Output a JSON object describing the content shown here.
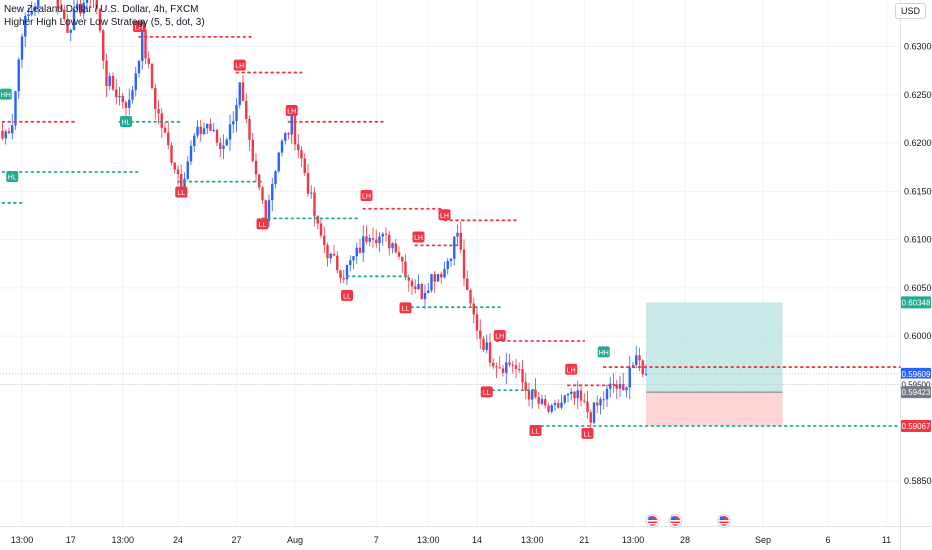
{
  "header": {
    "title": "New Zealand Dollar / U.S. Dollar, 4h, FXCM",
    "indicator": "Higher High Lower Low Strategy (5, 5, dot, 3)"
  },
  "currency_button": "USD",
  "colors": {
    "up": "#2962ff",
    "down": "#f23645",
    "bull_marker": "#22ab94",
    "grid": "#f0f3fa",
    "tp": "#b2dfdb",
    "sl": "#fccbcd"
  },
  "chart_data": {
    "type": "candlestick",
    "symbol": "NZDUSD",
    "timeframe": "4h",
    "ylim": [
      0.581,
      0.637
    ],
    "y_ticks": [
      "0.63000",
      "0.62500",
      "0.62000",
      "0.61500",
      "0.61000",
      "0.60500",
      "0.60000",
      "0.59500",
      "0.58500"
    ],
    "x_ticks": [
      {
        "label": "13:00",
        "i": 6
      },
      {
        "label": "17",
        "i": 21
      },
      {
        "label": "13:00",
        "i": 37
      },
      {
        "label": "24",
        "i": 54
      },
      {
        "label": "27",
        "i": 72
      },
      {
        "label": "Aug",
        "i": 90
      },
      {
        "label": "7",
        "i": 115
      },
      {
        "label": "13:00",
        "i": 131
      },
      {
        "label": "14",
        "i": 146
      },
      {
        "label": "13:00",
        "i": 163
      },
      {
        "label": "21",
        "i": 179
      },
      {
        "label": "13:00",
        "i": 194
      },
      {
        "label": "28",
        "i": 210
      },
      {
        "label": "Sep",
        "i": 234
      },
      {
        "label": "6",
        "i": 254
      },
      {
        "label": "11",
        "i": 272
      }
    ],
    "anchors": [
      [
        0,
        0.6205
      ],
      [
        3,
        0.6223
      ],
      [
        6,
        0.6318
      ],
      [
        10,
        0.6345
      ],
      [
        14,
        0.6372
      ],
      [
        20,
        0.632
      ],
      [
        28,
        0.6362
      ],
      [
        32,
        0.6265
      ],
      [
        36,
        0.6248
      ],
      [
        39,
        0.624
      ],
      [
        43,
        0.631
      ],
      [
        47,
        0.624
      ],
      [
        51,
        0.6195
      ],
      [
        55,
        0.616
      ],
      [
        59,
        0.6205
      ],
      [
        63,
        0.622
      ],
      [
        67,
        0.6195
      ],
      [
        70,
        0.6215
      ],
      [
        73,
        0.6258
      ],
      [
        77,
        0.6175
      ],
      [
        81,
        0.6128
      ],
      [
        85,
        0.6192
      ],
      [
        89,
        0.622
      ],
      [
        93,
        0.617
      ],
      [
        97,
        0.611
      ],
      [
        101,
        0.608
      ],
      [
        105,
        0.6065
      ],
      [
        109,
        0.6085
      ],
      [
        113,
        0.611
      ],
      [
        117,
        0.61
      ],
      [
        121,
        0.6095
      ],
      [
        125,
        0.606
      ],
      [
        129,
        0.6045
      ],
      [
        132,
        0.6062
      ],
      [
        136,
        0.607
      ],
      [
        140,
        0.6108
      ],
      [
        143,
        0.604
      ],
      [
        147,
        0.6
      ],
      [
        150,
        0.598
      ],
      [
        153,
        0.597
      ],
      [
        157,
        0.5972
      ],
      [
        161,
        0.5945
      ],
      [
        165,
        0.593
      ],
      [
        169,
        0.592
      ],
      [
        173,
        0.5935
      ],
      [
        177,
        0.5935
      ],
      [
        181,
        0.5918
      ],
      [
        184,
        0.5932
      ],
      [
        188,
        0.595
      ],
      [
        191,
        0.594
      ],
      [
        193,
        0.597
      ],
      [
        196,
        0.5972
      ],
      [
        198,
        0.5961
      ]
    ],
    "swing_labels": [
      {
        "text": "HH",
        "i": 1,
        "price": 0.6245,
        "kind": "bull",
        "pos": "above"
      },
      {
        "text": "HL",
        "i": 38,
        "price": 0.6228,
        "kind": "bull",
        "pos": "below"
      },
      {
        "text": "HL",
        "i": 3,
        "price": 0.6171,
        "kind": "bull",
        "pos": "below"
      },
      {
        "text": "LH",
        "i": 42,
        "price": 0.6315,
        "kind": "bear",
        "pos": "above"
      },
      {
        "text": "LH",
        "i": 73,
        "price": 0.6275,
        "kind": "bear",
        "pos": "above"
      },
      {
        "text": "LH",
        "i": 89,
        "price": 0.6228,
        "kind": "bear",
        "pos": "above"
      },
      {
        "text": "LL",
        "i": 55,
        "price": 0.6155,
        "kind": "bear",
        "pos": "below"
      },
      {
        "text": "LL",
        "i": 80,
        "price": 0.6122,
        "kind": "bear",
        "pos": "below"
      },
      {
        "text": "LH",
        "i": 112,
        "price": 0.614,
        "kind": "bear",
        "pos": "above"
      },
      {
        "text": "LH",
        "i": 128,
        "price": 0.6097,
        "kind": "bear",
        "pos": "above"
      },
      {
        "text": "LH",
        "i": 136,
        "price": 0.612,
        "kind": "bear",
        "pos": "above"
      },
      {
        "text": "LL",
        "i": 106,
        "price": 0.6048,
        "kind": "bear",
        "pos": "below"
      },
      {
        "text": "LL",
        "i": 124,
        "price": 0.6035,
        "kind": "bear",
        "pos": "below"
      },
      {
        "text": "LH",
        "i": 153,
        "price": 0.5995,
        "kind": "bear",
        "pos": "above"
      },
      {
        "text": "LL",
        "i": 149,
        "price": 0.5948,
        "kind": "bear",
        "pos": "below"
      },
      {
        "text": "LH",
        "i": 175,
        "price": 0.596,
        "kind": "bear",
        "pos": "above"
      },
      {
        "text": "LL",
        "i": 164,
        "price": 0.5908,
        "kind": "bear",
        "pos": "below"
      },
      {
        "text": "HH",
        "i": 185,
        "price": 0.5978,
        "kind": "bull",
        "pos": "above"
      },
      {
        "text": "LL",
        "i": 180,
        "price": 0.5905,
        "kind": "bear",
        "pos": "below"
      }
    ],
    "levels": [
      {
        "price": 0.6222,
        "from": 0,
        "to": 22,
        "kind": "bear"
      },
      {
        "price": 0.617,
        "from": 0,
        "to": 42,
        "kind": "bull"
      },
      {
        "price": 0.6138,
        "from": 0,
        "to": 6,
        "kind": "bull"
      },
      {
        "price": 0.6222,
        "from": 36,
        "to": 55,
        "kind": "bull"
      },
      {
        "price": 0.631,
        "from": 42,
        "to": 77,
        "kind": "bear"
      },
      {
        "price": 0.6273,
        "from": 72,
        "to": 92,
        "kind": "bear"
      },
      {
        "price": 0.6222,
        "from": 88,
        "to": 117,
        "kind": "bear"
      },
      {
        "price": 0.616,
        "from": 54,
        "to": 80,
        "kind": "bull"
      },
      {
        "price": 0.6122,
        "from": 80,
        "to": 110,
        "kind": "bull"
      },
      {
        "price": 0.6132,
        "from": 111,
        "to": 135,
        "kind": "bear"
      },
      {
        "price": 0.612,
        "from": 136,
        "to": 158,
        "kind": "bear"
      },
      {
        "price": 0.6094,
        "from": 127,
        "to": 140,
        "kind": "bear"
      },
      {
        "price": 0.6062,
        "from": 106,
        "to": 125,
        "kind": "bull"
      },
      {
        "price": 0.603,
        "from": 124,
        "to": 153,
        "kind": "bull"
      },
      {
        "price": 0.5995,
        "from": 152,
        "to": 179,
        "kind": "bear"
      },
      {
        "price": 0.5944,
        "from": 149,
        "to": 165,
        "kind": "bull"
      },
      {
        "price": 0.5949,
        "from": 174,
        "to": 190,
        "kind": "bear"
      },
      {
        "price": 0.5968,
        "from": 185,
        "to": 278,
        "kind": "bear"
      },
      {
        "price": 0.5907,
        "from": 164,
        "to": 278,
        "kind": "bull"
      }
    ],
    "position": {
      "from": 198,
      "to": 240,
      "entry": 0.5942,
      "target": 0.6035,
      "stop": 0.5907
    },
    "price_badges": [
      {
        "text": "0.60348",
        "price": 0.6035,
        "color": "#22ab94"
      },
      {
        "text": "0.59609",
        "price": 0.5961,
        "color": "#2962ff"
      },
      {
        "text": "0.59500",
        "price": 0.595,
        "color": "#ffffff",
        "textColor": "#131722"
      },
      {
        "text": "0.59423",
        "price": 0.5942,
        "color": "#787b86"
      },
      {
        "text": "0.59067",
        "price": 0.5907,
        "color": "#f23645"
      }
    ],
    "event_icons": [
      {
        "i": 200
      },
      {
        "i": 207
      },
      {
        "i": 222
      }
    ]
  }
}
